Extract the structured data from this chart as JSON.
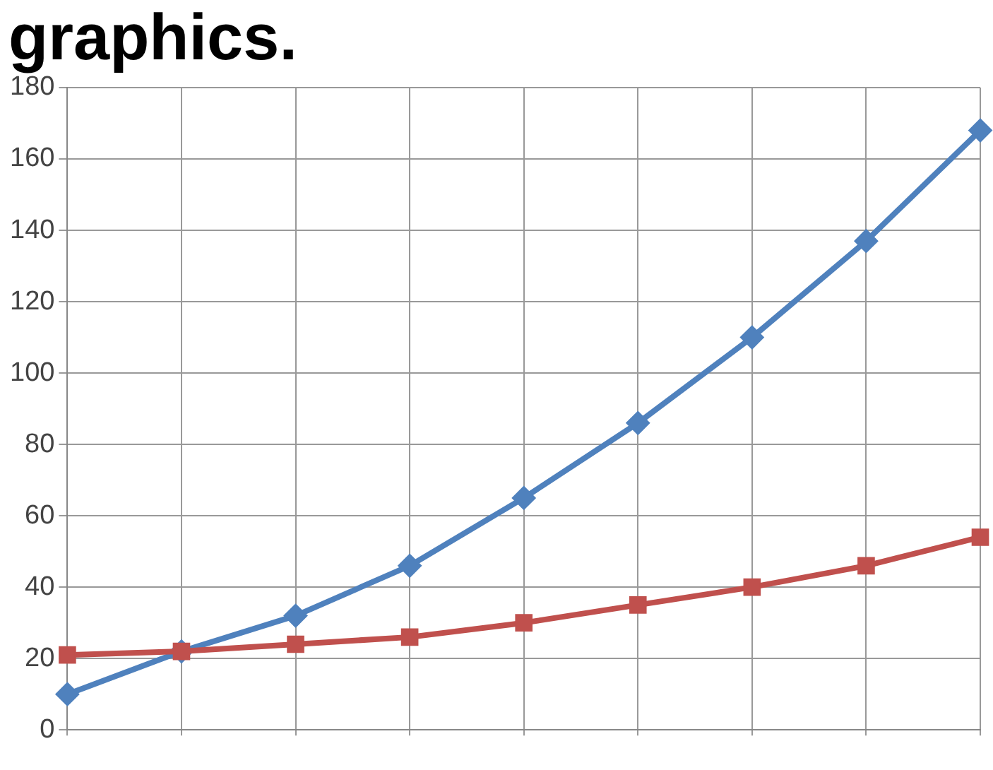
{
  "chart_data": {
    "type": "line",
    "title": "graphics.",
    "categories": [
      null,
      null,
      null,
      null,
      null,
      null,
      null,
      null,
      null
    ],
    "series": [
      {
        "color": "#4f81bd",
        "marker": "diamond",
        "values": [
          10,
          22,
          32,
          46,
          65,
          86,
          110,
          137,
          168
        ]
      },
      {
        "color": "#c0504d",
        "marker": "square",
        "values": [
          21,
          22,
          24,
          26,
          30,
          35,
          40,
          46,
          54
        ]
      }
    ],
    "ylim": [
      0,
      180
    ],
    "yticks": [
      0,
      20,
      40,
      60,
      80,
      100,
      120,
      140,
      160,
      180
    ],
    "grid": true,
    "legend": false,
    "line_style": "solid"
  }
}
